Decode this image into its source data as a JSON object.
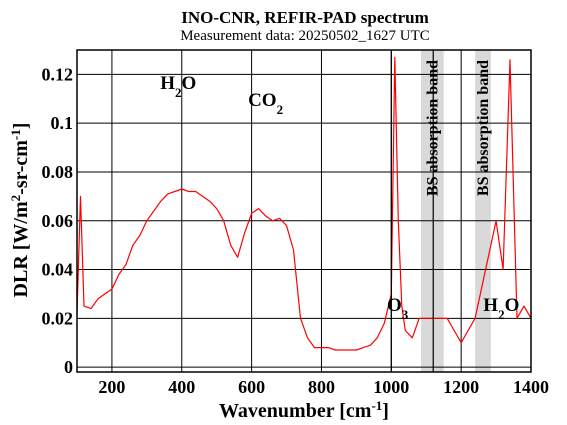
{
  "chart_data": {
    "type": "line",
    "title": "INO-CNR, REFIR-PAD spectrum",
    "subtitle": "Measurement data: 20250502_1627 UTC",
    "xlabel": {
      "main": "Wavenumber [cm",
      "sup": "-1",
      "tail": "]"
    },
    "ylabel": {
      "p1": "DLR [W/m",
      "sup1": "2",
      "p2": "-sr-cm",
      "sup2": "-1",
      "p3": "]"
    },
    "xlim": [
      100,
      1400
    ],
    "ylim": [
      -0.002,
      0.13
    ],
    "xticks": [
      200,
      400,
      600,
      800,
      1000,
      1200,
      1400
    ],
    "yticks": [
      0,
      0.02,
      0.04,
      0.06,
      0.08,
      0.1,
      0.12
    ],
    "ytick_labels": [
      "0",
      "0.02",
      "0.04",
      "0.06",
      "0.08",
      "0.1",
      "0.12"
    ],
    "vlines": [
      1000,
      1120
    ],
    "grid": true,
    "series": [
      {
        "color": "#ff0000",
        "x": [
          100,
          110,
          120,
          140,
          160,
          180,
          200,
          220,
          240,
          260,
          280,
          300,
          320,
          340,
          360,
          380,
          400,
          420,
          440,
          460,
          480,
          500,
          520,
          540,
          560,
          580,
          600,
          620,
          640,
          660,
          680,
          700,
          720,
          740,
          760,
          780,
          800,
          820,
          840,
          860,
          880,
          900,
          920,
          940,
          960,
          980,
          1000,
          1010,
          1020,
          1030,
          1040,
          1060,
          1080,
          1160,
          1180,
          1200,
          1220,
          1240,
          1300,
          1320,
          1340,
          1360,
          1380,
          1400
        ],
        "y": [
          0.022,
          0.07,
          0.025,
          0.024,
          0.028,
          0.03,
          0.032,
          0.038,
          0.042,
          0.05,
          0.054,
          0.06,
          0.064,
          0.068,
          0.071,
          0.072,
          0.073,
          0.072,
          0.072,
          0.07,
          0.068,
          0.065,
          0.06,
          0.05,
          0.045,
          0.055,
          0.063,
          0.065,
          0.062,
          0.06,
          0.061,
          0.058,
          0.048,
          0.02,
          0.012,
          0.008,
          0.008,
          0.008,
          0.007,
          0.007,
          0.007,
          0.007,
          0.008,
          0.009,
          0.012,
          0.018,
          0.03,
          0.127,
          0.06,
          0.025,
          0.015,
          0.012,
          0.02,
          0.02,
          0.015,
          0.01,
          0.015,
          0.02,
          0.06,
          0.04,
          0.126,
          0.02,
          0.025,
          0.02
        ]
      }
    ],
    "bands": [
      {
        "x0": 1085,
        "x1": 1150,
        "color": "#d9d9d9",
        "label": "BS absorption band"
      },
      {
        "x0": 1240,
        "x1": 1285,
        "color": "#d9d9d9",
        "label": "BS absorption band"
      }
    ],
    "annotations": [
      {
        "base": "H",
        "sub": "2",
        "tail": "O",
        "x": 390,
        "y": 0.114
      },
      {
        "base": "CO",
        "sub": "2",
        "tail": "",
        "x": 640,
        "y": 0.107
      },
      {
        "base": "O",
        "sub": "3",
        "tail": "",
        "x": 1018,
        "y": 0.023
      },
      {
        "base": "H",
        "sub": "2",
        "tail": "O",
        "x": 1315,
        "y": 0.023
      }
    ]
  }
}
